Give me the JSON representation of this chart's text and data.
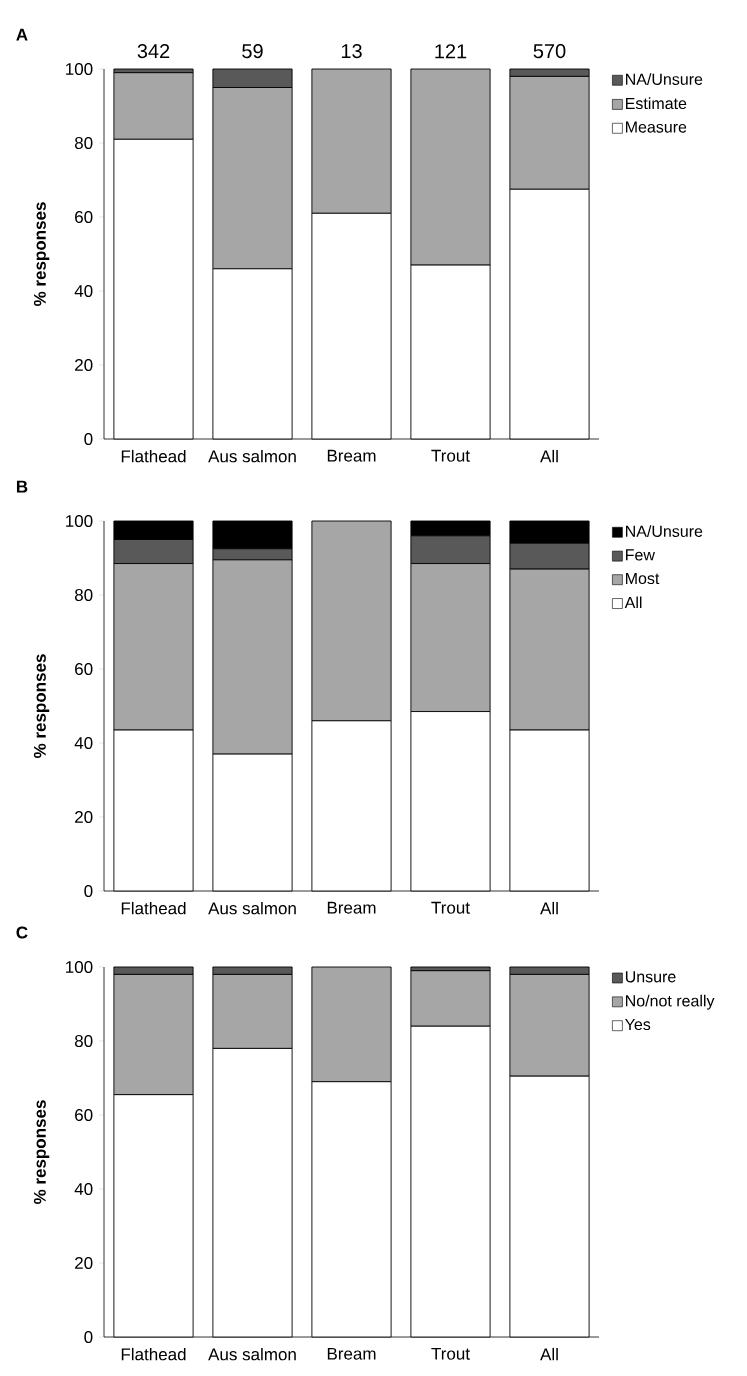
{
  "chart_data": [
    {
      "type": "bar",
      "title": "A",
      "ylabel": "% responses",
      "stacked": true,
      "legend": "top right",
      "categories": [
        "Flathead",
        "Aus salmon",
        "Bream",
        "Trout",
        "All"
      ],
      "series": [
        {
          "name": "Measure",
          "color": "#ffffff",
          "values": [
            81,
            46,
            61,
            47,
            67.5
          ]
        },
        {
          "name": "Estimate",
          "color": "#a6a6a6",
          "values": [
            18,
            49,
            39,
            53,
            30.5
          ]
        },
        {
          "name": "NA/Unsure",
          "color": "#595959",
          "values": [
            1,
            5,
            0,
            0,
            2
          ]
        }
      ],
      "ylim": [
        0,
        100
      ],
      "yticks": [
        0,
        20,
        40,
        60,
        80,
        100
      ],
      "annotations": [
        "342",
        "59",
        "13",
        "121",
        "570"
      ]
    },
    {
      "type": "bar",
      "title": "B",
      "ylabel": "% responses",
      "stacked": true,
      "legend": "top right",
      "categories": [
        "Flathead",
        "Aus salmon",
        "Bream",
        "Trout",
        "All"
      ],
      "series": [
        {
          "name": "All",
          "color": "#ffffff",
          "values": [
            43.5,
            37,
            46,
            48.5,
            43.5
          ]
        },
        {
          "name": "Most",
          "color": "#a6a6a6",
          "values": [
            45,
            52.5,
            54,
            40,
            43.5
          ]
        },
        {
          "name": "Few",
          "color": "#595959",
          "values": [
            6.5,
            3,
            0,
            7.5,
            7
          ]
        },
        {
          "name": "NA/Unsure",
          "color": "#000000",
          "values": [
            5,
            7.5,
            0,
            4,
            6
          ]
        }
      ],
      "ylim": [
        0,
        100
      ],
      "yticks": [
        0,
        20,
        40,
        60,
        80,
        100
      ]
    },
    {
      "type": "bar",
      "title": "C",
      "ylabel": "% responses",
      "stacked": true,
      "legend": "top right",
      "categories": [
        "Flathead",
        "Aus salmon",
        "Bream",
        "Trout",
        "All"
      ],
      "series": [
        {
          "name": "Yes",
          "color": "#ffffff",
          "values": [
            65.5,
            78,
            69,
            84,
            70.5
          ]
        },
        {
          "name": "No/not really",
          "color": "#a6a6a6",
          "values": [
            32.5,
            20,
            31,
            15,
            27.5
          ]
        },
        {
          "name": "Unsure",
          "color": "#595959",
          "values": [
            2,
            2,
            0,
            1,
            2
          ]
        }
      ],
      "ylim": [
        0,
        100
      ],
      "yticks": [
        0,
        20,
        40,
        60,
        80,
        100
      ]
    }
  ]
}
